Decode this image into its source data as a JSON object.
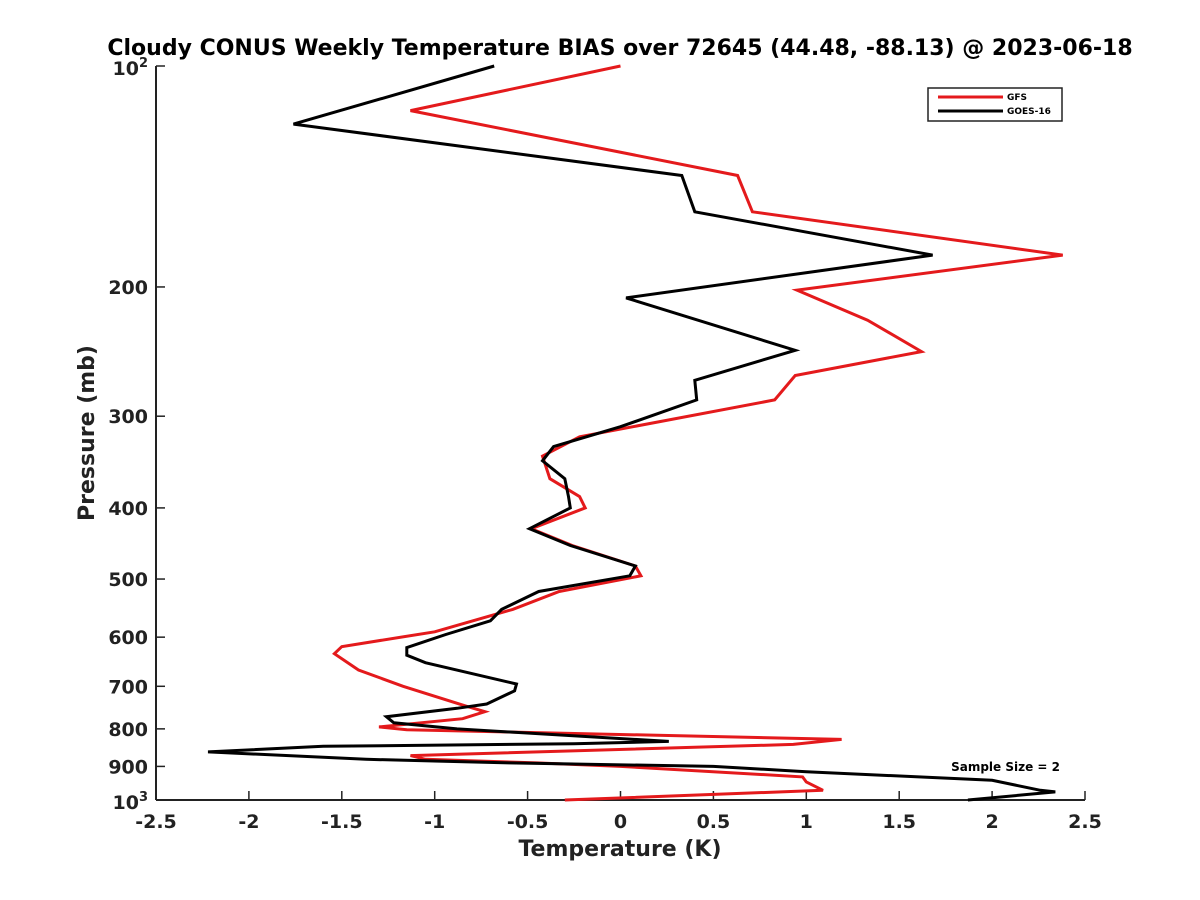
{
  "chart_data": {
    "type": "line",
    "title": "Cloudy CONUS Weekly Temperature BIAS over 72645 (44.48, -88.13) @ 2023-06-18",
    "xlabel": "Temperature (K)",
    "ylabel": "Pressure (mb)",
    "xlim": [
      -2.5,
      2.5
    ],
    "ylim": [
      100,
      1000
    ],
    "y_scale": "log",
    "y_reversed": true,
    "grid": false,
    "legend_position": "top-right",
    "x_ticks": [
      -2.5,
      -2,
      -1.5,
      -1,
      -0.5,
      0,
      0.5,
      1,
      1.5,
      2,
      2.5
    ],
    "x_tick_labels": [
      "-2.5",
      "-2",
      "-1.5",
      "-1",
      "-0.5",
      "0",
      "0.5",
      "1",
      "1.5",
      "2",
      "2.5"
    ],
    "y_ticks": [
      200,
      300,
      400,
      500,
      600,
      700,
      800,
      900
    ],
    "y_tick_labels": [
      "200",
      "300",
      "400",
      "500",
      "600",
      "700",
      "800",
      "900"
    ],
    "y_tick_top": {
      "base": "10",
      "exponent": "2",
      "value": 100
    },
    "y_tick_bottom": {
      "base": "10",
      "exponent": "3",
      "value": 1000
    },
    "annotation": "Sample Size = 2",
    "series": [
      {
        "name": "GFS",
        "color": "#e41a1c",
        "points": [
          [
            0.0,
            100
          ],
          [
            -1.13,
            115
          ],
          [
            0.63,
            141
          ],
          [
            0.71,
            158
          ],
          [
            2.38,
            181
          ],
          [
            0.95,
            202
          ],
          [
            1.33,
            222
          ],
          [
            1.62,
            245
          ],
          [
            0.94,
            264
          ],
          [
            0.83,
            285
          ],
          [
            -0.22,
            320
          ],
          [
            -0.42,
            340
          ],
          [
            -0.38,
            365
          ],
          [
            -0.22,
            386
          ],
          [
            -0.19,
            400
          ],
          [
            -0.48,
            427
          ],
          [
            -0.26,
            450
          ],
          [
            0.08,
            480
          ],
          [
            0.11,
            495
          ],
          [
            -0.33,
            520
          ],
          [
            -0.58,
            550
          ],
          [
            -1.0,
            590
          ],
          [
            -1.5,
            618
          ],
          [
            -1.54,
            632
          ],
          [
            -1.41,
            665
          ],
          [
            -1.17,
            700
          ],
          [
            -0.83,
            745
          ],
          [
            -0.73,
            758
          ],
          [
            -0.85,
            775
          ],
          [
            -1.3,
            795
          ],
          [
            -1.15,
            802
          ],
          [
            1.19,
            827
          ],
          [
            0.93,
            840
          ],
          [
            -1.13,
            870
          ],
          [
            -1.05,
            880
          ],
          [
            -0.45,
            890
          ],
          [
            0.0,
            900
          ],
          [
            0.98,
            930
          ],
          [
            1.0,
            945
          ],
          [
            1.09,
            970
          ],
          [
            -0.3,
            1000
          ]
        ]
      },
      {
        "name": "GOES-16",
        "color": "#000000",
        "points": [
          [
            -0.68,
            100
          ],
          [
            -1.76,
            120
          ],
          [
            0.33,
            141
          ],
          [
            0.4,
            158
          ],
          [
            1.68,
            181
          ],
          [
            0.03,
            207
          ],
          [
            0.94,
            244
          ],
          [
            0.4,
            268
          ],
          [
            0.41,
            285
          ],
          [
            0.0,
            310
          ],
          [
            -0.36,
            330
          ],
          [
            -0.42,
            345
          ],
          [
            -0.3,
            365
          ],
          [
            -0.28,
            386
          ],
          [
            -0.27,
            400
          ],
          [
            -0.49,
            427
          ],
          [
            -0.27,
            450
          ],
          [
            0.08,
            480
          ],
          [
            0.05,
            495
          ],
          [
            -0.44,
            520
          ],
          [
            -0.64,
            550
          ],
          [
            -0.7,
            570
          ],
          [
            -0.94,
            595
          ],
          [
            -1.15,
            620
          ],
          [
            -1.15,
            635
          ],
          [
            -1.05,
            650
          ],
          [
            -0.56,
            695
          ],
          [
            -0.57,
            710
          ],
          [
            -0.72,
            740
          ],
          [
            -0.88,
            750
          ],
          [
            -1.26,
            770
          ],
          [
            -1.22,
            785
          ],
          [
            -0.88,
            800
          ],
          [
            0.26,
            832
          ],
          [
            -0.25,
            838
          ],
          [
            -1.6,
            845
          ],
          [
            -2.22,
            860
          ],
          [
            -1.37,
            880
          ],
          [
            -0.6,
            890
          ],
          [
            0.5,
            900
          ],
          [
            1.0,
            915
          ],
          [
            2.0,
            940
          ],
          [
            2.26,
            970
          ],
          [
            2.34,
            975
          ],
          [
            1.87,
            1000
          ]
        ]
      }
    ]
  }
}
